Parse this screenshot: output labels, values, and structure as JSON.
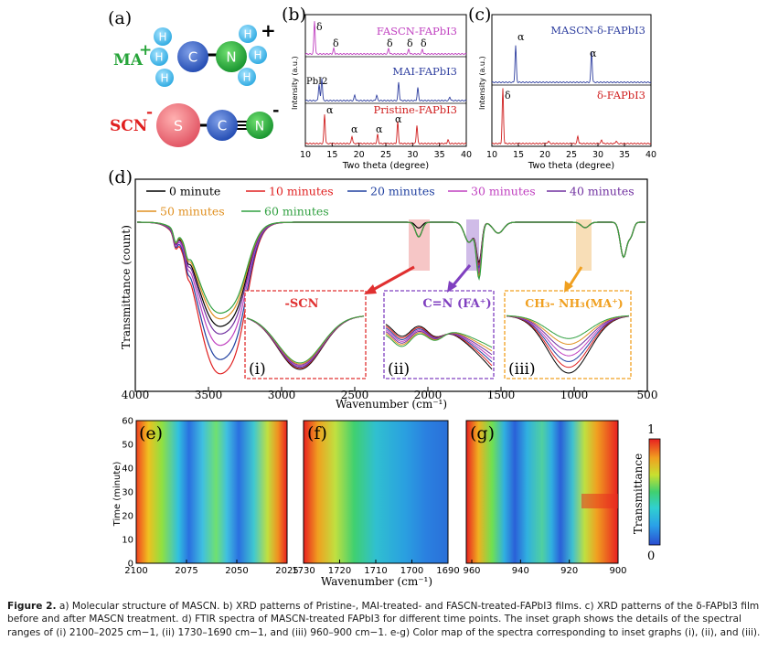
{
  "panel_a": {
    "label": "(a)",
    "ma_label": "MA",
    "ma_charge": "+",
    "ma_atoms": [
      "H",
      "H",
      "H",
      "C",
      "N",
      "H",
      "H",
      "H"
    ],
    "ma_plus": "+",
    "scn_label": "SCN",
    "scn_charge": "-",
    "scn_atoms": [
      "S",
      "C",
      "N"
    ],
    "scn_minus": "-"
  },
  "panel_b": {
    "label": "(b)",
    "ylabel": "Intensity (a.u.)",
    "xlabel": "Two theta (degree)",
    "xticks": [
      "10",
      "15",
      "20",
      "25",
      "30",
      "35",
      "40"
    ],
    "traces": [
      {
        "name": "FASCN-FAPbI3",
        "color": "#c040c0"
      },
      {
        "name": "MAI-FAPbI3",
        "color": "#3040a0"
      },
      {
        "name": "Pristine-FAPbI3",
        "color": "#d02020"
      }
    ],
    "annotations": [
      "δ",
      "δ",
      "δ",
      "δ",
      "δ",
      "PbI2",
      "α",
      "α",
      "α",
      "α"
    ]
  },
  "panel_c": {
    "label": "(c)",
    "ylabel": "Intensity (a.u.)",
    "xlabel": "Two theta (degree)",
    "xticks": [
      "10",
      "15",
      "20",
      "25",
      "30",
      "35",
      "40"
    ],
    "traces": [
      {
        "name": "MASCN-δ-FAPbI3",
        "color": "#3040a0"
      },
      {
        "name": "δ-FAPbI3",
        "color": "#d02020"
      }
    ],
    "annotations": [
      "α",
      "α",
      "δ"
    ]
  },
  "panel_d": {
    "label": "(d)",
    "ylabel": "Transmittance (count)",
    "xlabel": "Wavenumber (cm⁻¹)",
    "xticks": [
      "4000",
      "3500",
      "3000",
      "2500",
      "2000",
      "1500",
      "1000",
      "500"
    ],
    "legend": [
      {
        "name": "0 minute",
        "color": "#000000"
      },
      {
        "name": "10 minutes",
        "color": "#e02020"
      },
      {
        "name": "20 minutes",
        "color": "#2040a0"
      },
      {
        "name": "30 minutes",
        "color": "#c040c0"
      },
      {
        "name": "40 minutes",
        "color": "#7030a0"
      },
      {
        "name": "50 minutes",
        "color": "#e09020"
      },
      {
        "name": "60 minutes",
        "color": "#30a040"
      }
    ],
    "insets": [
      {
        "title": "-SCN",
        "label": "(i)",
        "color": "#e03030"
      },
      {
        "title": "C=N (FA⁺)",
        "label": "(ii)",
        "color": "#8040c0"
      },
      {
        "title": "CH₃- NH₃(MA⁺)",
        "label": "(iii)",
        "color": "#f0a020"
      }
    ]
  },
  "panels_efg": {
    "labels": [
      "(e)",
      "(f)",
      "(g)"
    ],
    "ylabel": "Time (minute)",
    "yticks": [
      "0",
      "10",
      "20",
      "30",
      "40",
      "50",
      "60"
    ],
    "xlabel": "Wavenumber (cm⁻¹)",
    "e_xticks": [
      "2100",
      "2075",
      "2050",
      "2025"
    ],
    "f_xticks": [
      "1730",
      "1720",
      "1710",
      "1700",
      "1690"
    ],
    "g_xticks": [
      "960",
      "940",
      "920",
      "900"
    ],
    "colorbar_label": "Transmittance",
    "colorbar_max": "1",
    "colorbar_min": "0"
  },
  "caption": {
    "bold": "Figure 2.",
    "text": "a) Molecular structure of MASCN. b) XRD patterns of Pristine-, MAI-treated- and FASCN-treated-FAPbI3 films. c) XRD patterns of the δ-FAPbI3 film before and after MASCN treatment. d) FTIR spectra of MASCN-treated FAPbI3 for different time points. The inset graph shows the details of the spectral ranges of (i) 2100–2025 cm−1, (ii) 1730–1690 cm−1, and (iii) 960–900 cm−1. e-g) Color map of the spectra corresponding to inset graphs (i), (ii), and (iii)."
  }
}
